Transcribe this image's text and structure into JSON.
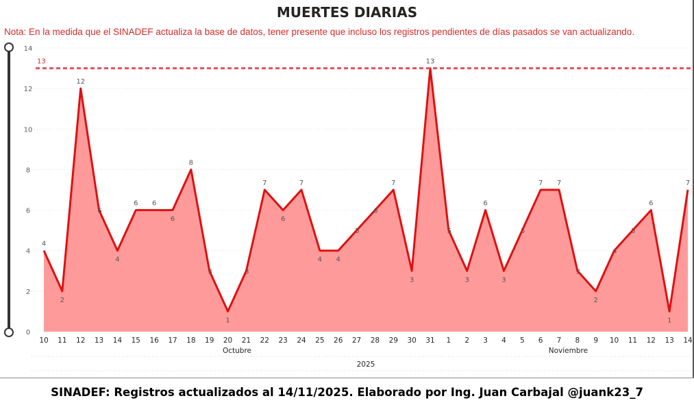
{
  "title": "MUERTES DIARIAS",
  "note": "Nota: En la medida que el SINADEF actualiza la base de datos, tener presente que incluso los registros pendientes de días pasados se van actualizando.",
  "footer": "SINADEF: Registros actualizados al 14/11/2025. Elaborado por Ing. Juan Carbajal @juank23_7",
  "colors": {
    "line": "#e01010",
    "area": "#ff9a9a",
    "reference": "#e8505a",
    "grid": "#d9d9d9"
  },
  "chart_data": {
    "type": "area",
    "title": "MUERTES DIARIAS",
    "x": [
      "10",
      "11",
      "12",
      "13",
      "14",
      "15",
      "16",
      "17",
      "18",
      "19",
      "20",
      "21",
      "22",
      "23",
      "24",
      "25",
      "26",
      "27",
      "28",
      "29",
      "30",
      "31",
      "1",
      "2",
      "3",
      "4",
      "5",
      "6",
      "7",
      "8",
      "9",
      "10",
      "11",
      "12",
      "13",
      "14"
    ],
    "x_groups": [
      {
        "label": "Octubre",
        "from": 0,
        "to": 21
      },
      {
        "label": "Noviembre",
        "from": 22,
        "to": 35
      }
    ],
    "x_year_label": "2025",
    "series": [
      {
        "values": [
          4,
          2,
          12,
          6,
          4,
          6,
          6,
          6,
          8,
          3,
          1,
          3,
          7,
          6,
          7,
          4,
          4,
          5,
          6,
          7,
          3,
          13,
          5,
          3,
          6,
          3,
          5,
          7,
          7,
          3,
          2,
          4,
          5,
          6,
          1,
          7
        ]
      }
    ],
    "reference_line": {
      "value": 13,
      "label": "13",
      "style": "dashed"
    },
    "ylim": [
      0,
      14
    ],
    "yticks": [
      0,
      2,
      4,
      6,
      8,
      10,
      12,
      14
    ],
    "grid": true,
    "legend": "none"
  }
}
